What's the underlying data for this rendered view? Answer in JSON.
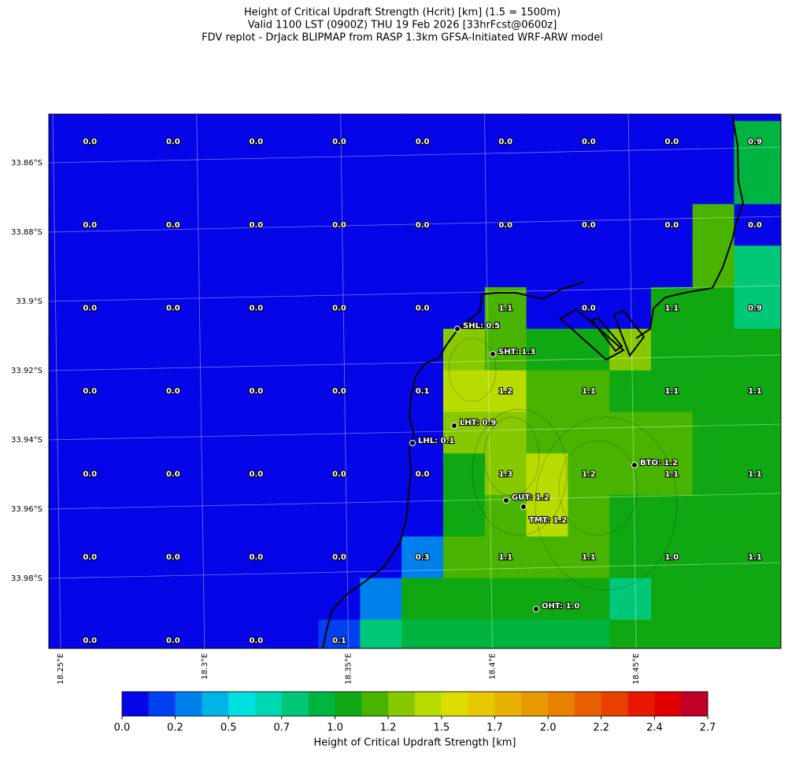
{
  "title": [
    "Height of Critical Updraft Strength (Hcrit) [km] (1.5 = 1500m)",
    "Valid 1100 LST (0900Z) THU 19 Feb 2026 [33hrFcst@0600z]",
    "FDV replot - DrJack BLIPMAP from RASP 1.3km GFSA-Initiated WRF-ARW model"
  ],
  "map": {
    "cells": [
      [
        0,
        0,
        0,
        0,
        0,
        0,
        0,
        0,
        0,
        0,
        0,
        0,
        0,
        0,
        0,
        0,
        0,
        0,
        0
      ],
      [
        0,
        0,
        0,
        0,
        0,
        0,
        0,
        0,
        0,
        0,
        0,
        0,
        0,
        0,
        0,
        0,
        0,
        0.9,
        0.9
      ],
      [
        0,
        0,
        0,
        0,
        0,
        0,
        0,
        0,
        0,
        0,
        0,
        0,
        0,
        0,
        0,
        0,
        0,
        0.9,
        0.9
      ],
      [
        0,
        0,
        0,
        0,
        0,
        0,
        0,
        0,
        0,
        0,
        0,
        0,
        0,
        0,
        0,
        0,
        1.2,
        0,
        0
      ],
      [
        0,
        0,
        0,
        0,
        0,
        0,
        0,
        0,
        0,
        0,
        0,
        0,
        0,
        0,
        0,
        0,
        1.2,
        0.8,
        0.8
      ],
      [
        0,
        0,
        0,
        0,
        0,
        0,
        0,
        0,
        0,
        0,
        0,
        1.2,
        0,
        0,
        0,
        1.1,
        1.1,
        0.8,
        0.8
      ],
      [
        0,
        0,
        0,
        0,
        0,
        0,
        0,
        0,
        0,
        0,
        1.3,
        1.2,
        1.1,
        1.1,
        1.3,
        1.05,
        1.05,
        1.05,
        1.05
      ],
      [
        0,
        0,
        0,
        0,
        0,
        0,
        0,
        0,
        0,
        0,
        1.4,
        1.4,
        1.15,
        1.15,
        1.05,
        1.05,
        1.05,
        1.05,
        1.05
      ],
      [
        0,
        0,
        0,
        0,
        0,
        0,
        0,
        0,
        0,
        0,
        1.3,
        1.3,
        1.15,
        1.2,
        1.2,
        1.2,
        1.05,
        1.05,
        1.05
      ],
      [
        0,
        0,
        0,
        0,
        0,
        0,
        0,
        0,
        0,
        0,
        1.05,
        1.3,
        1.4,
        1.2,
        1.2,
        1.2,
        1.05,
        1.05,
        1.05
      ],
      [
        0,
        0,
        0,
        0,
        0,
        0,
        0,
        0,
        0,
        0,
        1.05,
        1.15,
        1.35,
        1.15,
        1.05,
        1.05,
        1.05,
        1.05,
        1.05
      ],
      [
        0,
        0,
        0,
        0,
        0,
        0,
        0,
        0,
        0,
        0.3,
        1.15,
        1.15,
        1.15,
        1.15,
        1.05,
        1.05,
        1.05,
        1.05,
        1.05
      ],
      [
        0,
        0,
        0,
        0,
        0,
        0,
        0,
        0,
        0.3,
        1.05,
        1.05,
        1.05,
        1.05,
        1.05,
        0.8,
        1.05,
        1.05,
        1.05,
        1.05
      ],
      [
        0,
        0,
        0,
        0,
        0,
        0,
        0,
        0.15,
        0.75,
        0.95,
        0.95,
        0.95,
        0.95,
        0.95,
        1.05,
        1.05,
        1.05,
        1.05,
        1.05
      ]
    ],
    "labels": [
      [
        "0.0",
        "0.0",
        "0.0",
        "0.0",
        "0.0",
        "0.0",
        "0.0",
        "0.0",
        "0.9"
      ],
      [
        "0.0",
        "0.0",
        "0.0",
        "0.0",
        "0.0",
        "0.0",
        "0.0",
        "0.0",
        "0.0"
      ],
      [
        "0.0",
        "0.0",
        "0.0",
        "0.0",
        "0.0",
        "1.1",
        "0.0",
        "1.1",
        "0.9"
      ],
      [
        "0.0",
        "0.0",
        "0.0",
        "0.0",
        "0.1",
        "1.2",
        "1.1",
        "1.1",
        "1.1"
      ],
      [
        "0.0",
        "0.0",
        "0.0",
        "0.0",
        "0.0",
        "1.3",
        "1.2",
        "1.1",
        "1.1"
      ],
      [
        "0.0",
        "0.0",
        "0.0",
        "0.0",
        "0.3",
        "1.1",
        "1.1",
        "1.0",
        "1.1"
      ],
      [
        "0.0",
        "0.0",
        "0.0",
        "0.1"
      ]
    ],
    "stations": [
      "SHL: 0.5",
      "SHT: 1.3",
      "LHT: 0.9",
      "LHL: 0.1",
      "BTO: 1.2",
      "GUT: 1.2",
      "TMT: 1.2",
      "OHT: 1.0"
    ],
    "lat_ticks": [
      "33.86°S",
      "33.88°S",
      "33.9°S",
      "33.92°S",
      "33.94°S",
      "33.96°S",
      "33.98°S"
    ],
    "lon_ticks": [
      "18.25°E",
      "18.3°E",
      "18.35°E",
      "18.4°E",
      "18.45°E"
    ]
  },
  "colorbar": {
    "lim": [
      0,
      2.7
    ],
    "colors": [
      "#0505e8",
      "#0040f0",
      "#0080ea",
      "#00b4e8",
      "#00e0e0",
      "#00d8b4",
      "#00c878",
      "#00b440",
      "#10a812",
      "#48b400",
      "#88c800",
      "#b8dc00",
      "#dcdc00",
      "#e8c800",
      "#e8b000",
      "#e89800",
      "#e88000",
      "#e86000",
      "#e84000",
      "#e81800",
      "#e00000",
      "#c00028"
    ],
    "ticks": [
      {
        "value": 0,
        "label": "0.0"
      },
      {
        "value": 0.245,
        "label": "0.2"
      },
      {
        "value": 0.491,
        "label": "0.5"
      },
      {
        "value": 0.736,
        "label": "0.7"
      },
      {
        "value": 0.982,
        "label": "1.0"
      },
      {
        "value": 1.227,
        "label": "1.2"
      },
      {
        "value": 1.473,
        "label": "1.5"
      },
      {
        "value": 1.718,
        "label": "1.7"
      },
      {
        "value": 1.964,
        "label": "2.0"
      },
      {
        "value": 2.209,
        "label": "2.2"
      },
      {
        "value": 2.455,
        "label": "2.4"
      },
      {
        "value": 2.7,
        "label": "2.7"
      }
    ],
    "label": "Height of Critical Updraft Strength [km]"
  }
}
